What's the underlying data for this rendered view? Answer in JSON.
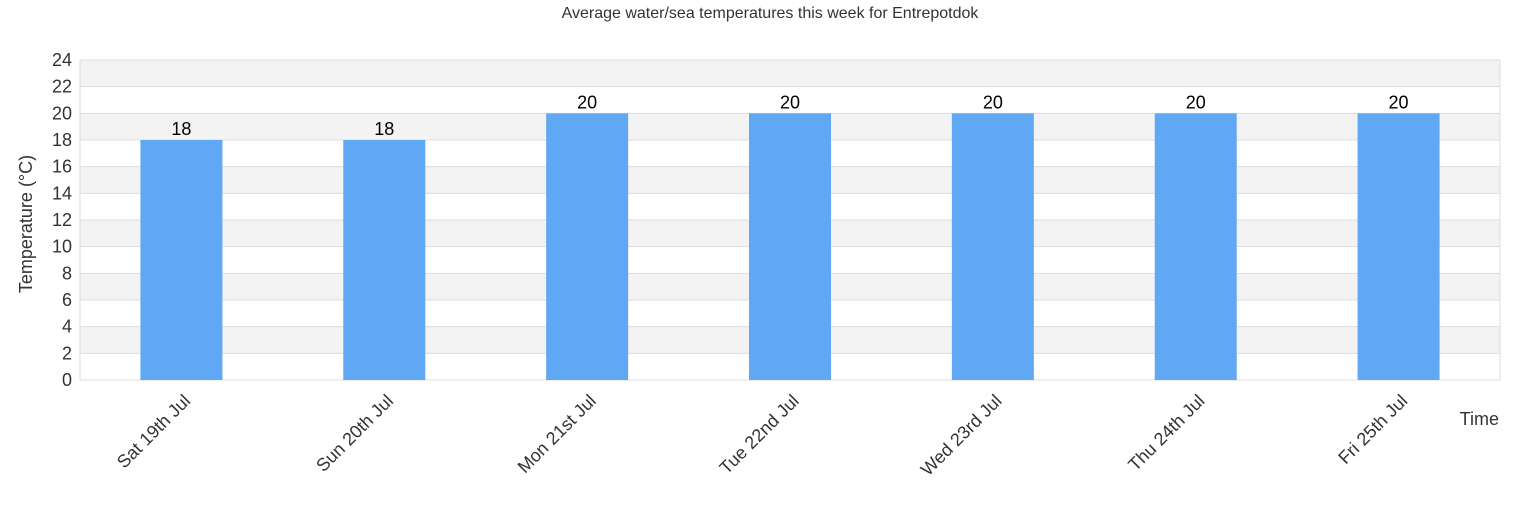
{
  "chart_data": {
    "type": "bar",
    "title": "Average water/sea temperatures this week for Entrepotdok",
    "xlabel": "Time",
    "ylabel": "Temperature (°C)",
    "categories": [
      "Sat 19th Jul",
      "Sun 20th Jul",
      "Mon 21st Jul",
      "Tue 22nd Jul",
      "Wed 23rd Jul",
      "Thu 24th Jul",
      "Fri 25th Jul"
    ],
    "values": [
      18,
      18,
      20,
      20,
      20,
      20,
      20
    ],
    "ylim": [
      0,
      24
    ],
    "yticks": [
      0,
      2,
      4,
      6,
      8,
      10,
      12,
      14,
      16,
      18,
      20,
      22,
      24
    ],
    "grid": true,
    "data_labels": true,
    "colors": {
      "bar": "#61a8f4",
      "band_light": "#f3f3f3",
      "band_white": "#ffffff",
      "gridline": "#dddddd",
      "text": "#333333"
    }
  }
}
